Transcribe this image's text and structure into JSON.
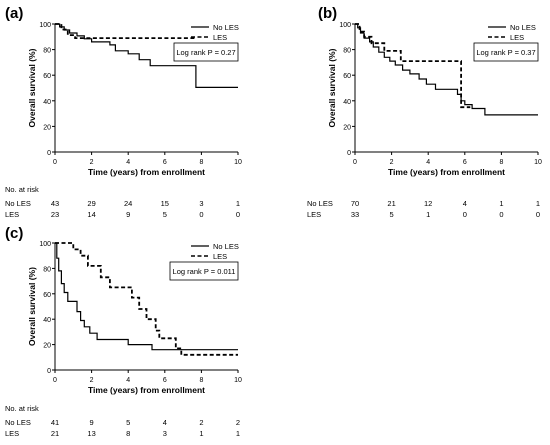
{
  "chart_data": [
    {
      "type": "line",
      "panel_label": "(a)",
      "xlabel": "Time (years) from enrollment",
      "ylabel": "Overall survival (%)",
      "xlim": [
        0,
        10
      ],
      "ylim": [
        0,
        100
      ],
      "x_ticks": [
        0,
        2,
        4,
        6,
        8,
        10
      ],
      "y_ticks": [
        0,
        20,
        40,
        60,
        80,
        100
      ],
      "annotation": "Log rank P = 0.27",
      "legend_position": "top-right",
      "series": [
        {
          "name": "No LES",
          "style": "solid",
          "points": [
            [
              0,
              100
            ],
            [
              0.25,
              100
            ],
            [
              0.25,
              97.7
            ],
            [
              0.5,
              97.7
            ],
            [
              0.5,
              95.3
            ],
            [
              0.8,
              95.3
            ],
            [
              0.8,
              93
            ],
            [
              1.2,
              93
            ],
            [
              1.2,
              90.7
            ],
            [
              1.6,
              90.7
            ],
            [
              1.6,
              88.4
            ],
            [
              2.0,
              88.4
            ],
            [
              2.0,
              86
            ],
            [
              3.0,
              86
            ],
            [
              3.0,
              83.7
            ],
            [
              3.3,
              83.7
            ],
            [
              3.3,
              79.1
            ],
            [
              4.0,
              79.1
            ],
            [
              4.0,
              76.7
            ],
            [
              4.6,
              76.7
            ],
            [
              4.6,
              72.1
            ],
            [
              5.2,
              72.1
            ],
            [
              5.2,
              67.4
            ],
            [
              7.7,
              67.4
            ],
            [
              7.7,
              50.5
            ],
            [
              10.0,
              50.5
            ]
          ]
        },
        {
          "name": "LES",
          "style": "dashed",
          "points": [
            [
              0,
              100
            ],
            [
              0.35,
              100
            ],
            [
              0.35,
              95.7
            ],
            [
              0.7,
              95.7
            ],
            [
              0.7,
              91.3
            ],
            [
              1.1,
              91.3
            ],
            [
              1.1,
              89
            ],
            [
              7.7,
              89
            ]
          ]
        }
      ],
      "at_risk": {
        "label": "No. at risk",
        "x": [
          0,
          2,
          4,
          6,
          8,
          10
        ],
        "rows": [
          {
            "name": "No LES",
            "values": [
              "43",
              "29",
              "24",
              "15",
              "3",
              "1"
            ]
          },
          {
            "name": "LES",
            "values": [
              "23",
              "14",
              "9",
              "5",
              "0",
              "0"
            ]
          }
        ]
      }
    },
    {
      "type": "line",
      "panel_label": "(b)",
      "xlabel": "Time (years) from enrollment",
      "ylabel": "Overall survival (%)",
      "xlim": [
        0,
        10
      ],
      "ylim": [
        0,
        100
      ],
      "x_ticks": [
        0,
        2,
        4,
        6,
        8,
        10
      ],
      "y_ticks": [
        0,
        20,
        40,
        60,
        80,
        100
      ],
      "annotation": "Log rank P = 0.37",
      "legend_position": "top-right",
      "series": [
        {
          "name": "No LES",
          "style": "solid",
          "points": [
            [
              0,
              100
            ],
            [
              0.15,
              100
            ],
            [
              0.15,
              97
            ],
            [
              0.3,
              97
            ],
            [
              0.3,
              93
            ],
            [
              0.5,
              93
            ],
            [
              0.5,
              89
            ],
            [
              0.8,
              89
            ],
            [
              0.8,
              86
            ],
            [
              1.0,
              86
            ],
            [
              1.0,
              82
            ],
            [
              1.3,
              82
            ],
            [
              1.3,
              78
            ],
            [
              1.6,
              78
            ],
            [
              1.6,
              74
            ],
            [
              1.9,
              74
            ],
            [
              1.9,
              71
            ],
            [
              2.2,
              71
            ],
            [
              2.2,
              68
            ],
            [
              2.6,
              68
            ],
            [
              2.6,
              64
            ],
            [
              3.0,
              64
            ],
            [
              3.0,
              61
            ],
            [
              3.5,
              61
            ],
            [
              3.5,
              57
            ],
            [
              3.9,
              57
            ],
            [
              3.9,
              53
            ],
            [
              4.4,
              53
            ],
            [
              4.4,
              49
            ],
            [
              5.6,
              49
            ],
            [
              5.6,
              45
            ],
            [
              5.8,
              45
            ],
            [
              5.8,
              40
            ],
            [
              6.0,
              40
            ],
            [
              6.0,
              37
            ],
            [
              6.4,
              37
            ],
            [
              6.4,
              34
            ],
            [
              7.1,
              34
            ],
            [
              7.1,
              29
            ],
            [
              10.0,
              29
            ]
          ]
        },
        {
          "name": "LES",
          "style": "dashed",
          "points": [
            [
              0,
              100
            ],
            [
              0.25,
              100
            ],
            [
              0.25,
              94
            ],
            [
              0.5,
              94
            ],
            [
              0.5,
              90
            ],
            [
              0.9,
              90
            ],
            [
              0.9,
              85
            ],
            [
              1.6,
              85
            ],
            [
              1.6,
              79
            ],
            [
              2.5,
              79
            ],
            [
              2.5,
              71
            ],
            [
              5.8,
              71
            ],
            [
              5.8,
              35
            ],
            [
              6.3,
              35
            ]
          ]
        }
      ],
      "at_risk": {
        "label": "No. at risk",
        "x": [
          0,
          2,
          4,
          6,
          8,
          10
        ],
        "rows": [
          {
            "name": "No LES",
            "values": [
              "70",
              "21",
              "12",
              "4",
              "1",
              "1"
            ]
          },
          {
            "name": "LES",
            "values": [
              "33",
              "5",
              "1",
              "0",
              "0",
              "0"
            ]
          }
        ]
      }
    },
    {
      "type": "line",
      "panel_label": "(c)",
      "xlabel": "Time (years) from enrollment",
      "ylabel": "Overall survival (%)",
      "xlim": [
        0,
        10
      ],
      "ylim": [
        0,
        100
      ],
      "x_ticks": [
        0,
        2,
        4,
        6,
        8,
        10
      ],
      "y_ticks": [
        0,
        20,
        40,
        60,
        80,
        100
      ],
      "annotation": "Log rank P = 0.011",
      "legend_position": "top-right",
      "series": [
        {
          "name": "No LES",
          "style": "solid",
          "points": [
            [
              0,
              100
            ],
            [
              0.1,
              100
            ],
            [
              0.1,
              88
            ],
            [
              0.2,
              88
            ],
            [
              0.2,
              78
            ],
            [
              0.35,
              78
            ],
            [
              0.35,
              68
            ],
            [
              0.5,
              68
            ],
            [
              0.5,
              61
            ],
            [
              0.7,
              61
            ],
            [
              0.7,
              54
            ],
            [
              1.2,
              54
            ],
            [
              1.2,
              46
            ],
            [
              1.4,
              46
            ],
            [
              1.4,
              39
            ],
            [
              1.6,
              39
            ],
            [
              1.6,
              34
            ],
            [
              1.9,
              34
            ],
            [
              1.9,
              29
            ],
            [
              2.3,
              29
            ],
            [
              2.3,
              24
            ],
            [
              4.0,
              24
            ],
            [
              4.0,
              20
            ],
            [
              5.3,
              20
            ],
            [
              5.3,
              16
            ],
            [
              10.0,
              16
            ]
          ]
        },
        {
          "name": "LES",
          "style": "dashed",
          "points": [
            [
              0,
              100
            ],
            [
              1.0,
              100
            ],
            [
              1.0,
              95
            ],
            [
              1.4,
              95
            ],
            [
              1.4,
              90
            ],
            [
              1.8,
              90
            ],
            [
              1.8,
              82
            ],
            [
              2.5,
              82
            ],
            [
              2.5,
              73
            ],
            [
              3.0,
              73
            ],
            [
              3.0,
              65
            ],
            [
              4.2,
              65
            ],
            [
              4.2,
              57
            ],
            [
              4.6,
              57
            ],
            [
              4.6,
              48
            ],
            [
              5.0,
              48
            ],
            [
              5.0,
              40
            ],
            [
              5.5,
              40
            ],
            [
              5.5,
              31
            ],
            [
              5.7,
              31
            ],
            [
              5.7,
              25
            ],
            [
              6.6,
              25
            ],
            [
              6.6,
              17
            ],
            [
              6.9,
              17
            ],
            [
              6.9,
              12
            ],
            [
              10.0,
              12
            ]
          ]
        }
      ],
      "at_risk": {
        "label": "No. at risk",
        "x": [
          0,
          2,
          4,
          6,
          8,
          10
        ],
        "rows": [
          {
            "name": "No LES",
            "values": [
              "41",
              "9",
              "5",
              "4",
              "2",
              "2"
            ]
          },
          {
            "name": "LES",
            "values": [
              "21",
              "13",
              "8",
              "3",
              "1",
              "1"
            ]
          }
        ]
      }
    }
  ]
}
